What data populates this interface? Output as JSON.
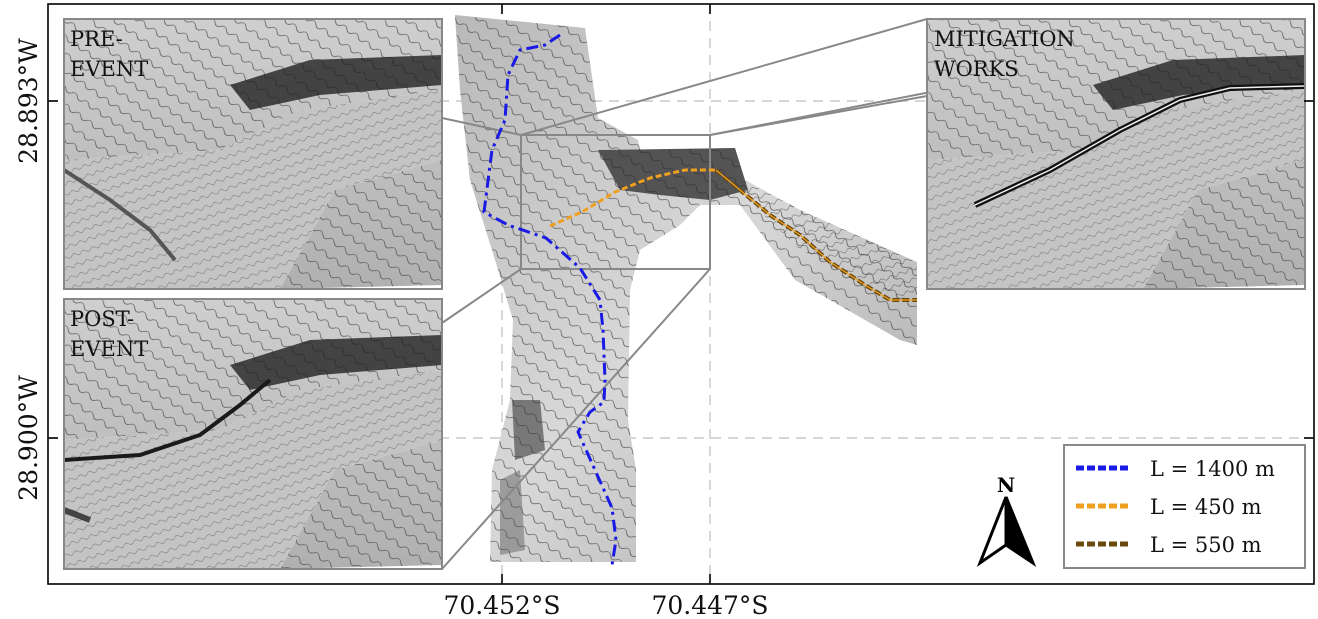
{
  "axes": {
    "x_ticks": [
      "70.452°S",
      "70.447°S"
    ],
    "y_ticks": [
      "28.893°W",
      "28.900°W"
    ]
  },
  "insets": {
    "pre": {
      "label_line1": "PRE-",
      "label_line2": "EVENT"
    },
    "post": {
      "label_line1": "POST-",
      "label_line2": "EVENT"
    },
    "mitigation": {
      "label_line1": "MITIGATION",
      "label_line2": "WORKS"
    }
  },
  "legend": {
    "items": [
      {
        "label": "L = 1400 m",
        "color": "#1a1ae6"
      },
      {
        "label": "L = 450 m",
        "color": "#f0a020"
      },
      {
        "label": "L = 550 m",
        "color": "#6b4a10"
      }
    ]
  },
  "north_arrow": {
    "label": "N",
    "icon": "north-arrow-icon"
  },
  "colors": {
    "frame": "#000000",
    "inset_border": "#888888",
    "grid": "#c8c8c8"
  }
}
